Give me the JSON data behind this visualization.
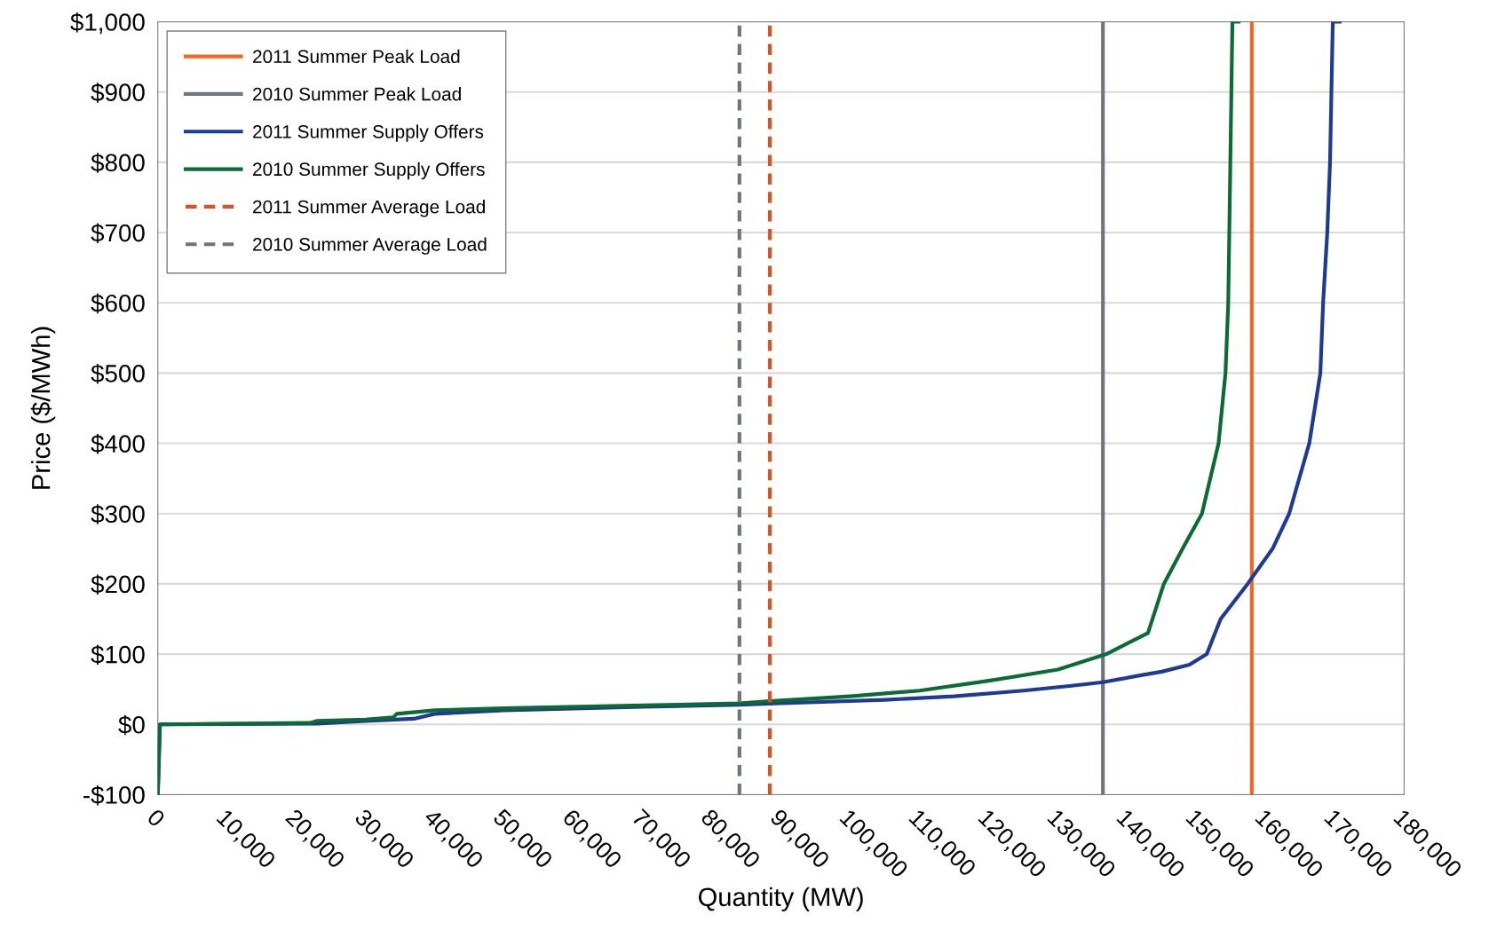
{
  "chart_data": {
    "type": "line",
    "xlabel": "Quantity (MW)",
    "ylabel": "Price ($/MWh)",
    "xlim": [
      0,
      180000
    ],
    "xticks": [
      {
        "value": 0,
        "label": "0"
      },
      {
        "value": 10000,
        "label": "10,000"
      },
      {
        "value": 20000,
        "label": "20,000"
      },
      {
        "value": 30000,
        "label": "30,000"
      },
      {
        "value": 40000,
        "label": "40,000"
      },
      {
        "value": 50000,
        "label": "50,000"
      },
      {
        "value": 60000,
        "label": "60,000"
      },
      {
        "value": 70000,
        "label": "70,000"
      },
      {
        "value": 80000,
        "label": "80,000"
      },
      {
        "value": 90000,
        "label": "90,000"
      },
      {
        "value": 100000,
        "label": "100,000"
      },
      {
        "value": 110000,
        "label": "110,000"
      },
      {
        "value": 120000,
        "label": "120,000"
      },
      {
        "value": 130000,
        "label": "130,000"
      },
      {
        "value": 140000,
        "label": "140,000"
      },
      {
        "value": 150000,
        "label": "150,000"
      },
      {
        "value": 160000,
        "label": "160,000"
      },
      {
        "value": 170000,
        "label": "170,000"
      },
      {
        "value": 180000,
        "label": "180,000"
      }
    ],
    "ylim": [
      -100,
      1000
    ],
    "yticks": [
      {
        "value": -100,
        "label": "-$100"
      },
      {
        "value": 0,
        "label": "$0"
      },
      {
        "value": 100,
        "label": "$100"
      },
      {
        "value": 200,
        "label": "$200"
      },
      {
        "value": 300,
        "label": "$300"
      },
      {
        "value": 400,
        "label": "$400"
      },
      {
        "value": 500,
        "label": "$500"
      },
      {
        "value": 600,
        "label": "$600"
      },
      {
        "value": 700,
        "label": "$700"
      },
      {
        "value": 800,
        "label": "$800"
      },
      {
        "value": 900,
        "label": "$900"
      },
      {
        "value": 1000,
        "label": "$1,000"
      }
    ],
    "grid": "y",
    "legend": "top left",
    "series": [
      {
        "name": "2011 Summer Peak Load",
        "color": "#f26522",
        "line_style": "solid",
        "x": [
          158000,
          158000
        ],
        "values": [
          -100,
          1000
        ]
      },
      {
        "name": "2010 Summer Peak Load",
        "color": "#6d7580",
        "line_style": "solid",
        "x": [
          136500,
          136500
        ],
        "values": [
          -100,
          1000
        ]
      },
      {
        "name": "2011 Summer Supply Offers",
        "color": "#1f3a93",
        "line_style": "solid",
        "x": [
          0,
          300,
          23000,
          30000,
          37000,
          40000,
          50000,
          70000,
          84000,
          90000,
          105000,
          115000,
          125000,
          132000,
          136500,
          142000,
          145000,
          149000,
          151500,
          153500,
          157400,
          161000,
          163400,
          166300,
          167900,
          168300,
          168900,
          169300,
          169700,
          170700
        ],
        "values": [
          -100,
          0,
          1,
          5,
          8,
          15,
          20,
          25,
          28,
          30,
          35,
          40,
          48,
          55,
          60,
          70,
          75,
          85,
          100,
          150,
          200,
          250,
          300,
          400,
          500,
          600,
          700,
          800,
          1000,
          1000
        ]
      },
      {
        "name": "2010 Summer Supply Offers",
        "color": "#0b6b35",
        "line_style": "solid",
        "x": [
          0,
          300,
          22000,
          23000,
          30000,
          34000,
          34500,
          40000,
          50000,
          70000,
          84000,
          88400,
          100000,
          110000,
          120000,
          130000,
          137000,
          140000,
          143000,
          145300,
          148000,
          150800,
          153200,
          154200,
          154600,
          155200,
          156100
        ],
        "values": [
          -100,
          0,
          2,
          5,
          7,
          10,
          15,
          20,
          23,
          27,
          30,
          33,
          40,
          48,
          62,
          78,
          100,
          115,
          130,
          200,
          250,
          300,
          400,
          500,
          600,
          1000,
          1000
        ]
      },
      {
        "name": "2011 Summer Average Load",
        "color": "#e0501e",
        "line_style": "dashed",
        "x": [
          88400,
          88400
        ],
        "values": [
          -100,
          1000
        ]
      },
      {
        "name": "2010 Summer Average Load",
        "color": "#6d7580",
        "line_style": "dashed",
        "x": [
          84000,
          84000
        ],
        "values": [
          -100,
          1000
        ]
      }
    ]
  }
}
